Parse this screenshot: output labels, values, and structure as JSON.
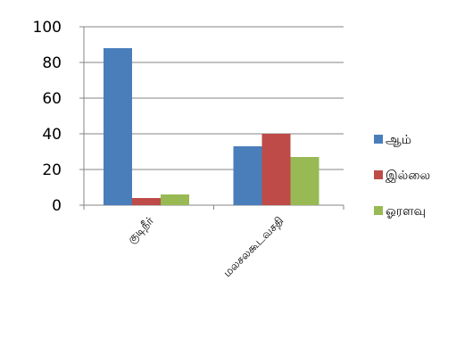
{
  "chart_data": {
    "type": "bar",
    "categories": [
      "குடிநீர்",
      "மலசலகூடவசதி"
    ],
    "series": [
      {
        "name": "ஆம்",
        "values": [
          88,
          33
        ],
        "color": "#4a7ebb"
      },
      {
        "name": "இல்லை",
        "values": [
          4,
          40
        ],
        "color": "#be4b48"
      },
      {
        "name": "ஓரளவு",
        "values": [
          6,
          27
        ],
        "color": "#98b954"
      }
    ],
    "ylim": [
      0,
      100
    ],
    "yticks": [
      0,
      20,
      40,
      60,
      80,
      100
    ],
    "grid": true,
    "legend_position": "right"
  }
}
